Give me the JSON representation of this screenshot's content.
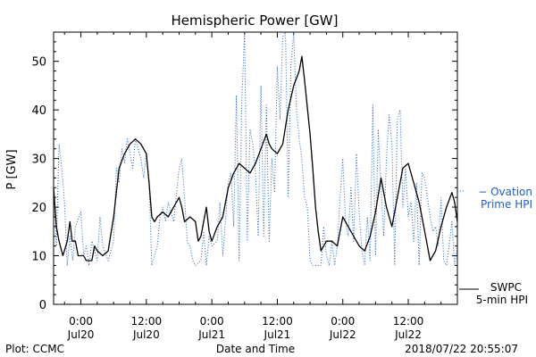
{
  "chart_data": {
    "type": "line",
    "title": "Hemispheric Power [GW]",
    "ylabel": "P [GW]",
    "xlabel": "Date and Time",
    "ylim": [
      0,
      56
    ],
    "xlim_hours": [
      -5,
      69
    ],
    "yticks": [
      0,
      10,
      20,
      30,
      40,
      50
    ],
    "xticks": [
      {
        "hour": 0,
        "time": "0:00",
        "date": "Jul20"
      },
      {
        "hour": 12,
        "time": "12:00",
        "date": "Jul20"
      },
      {
        "hour": 24,
        "time": "0:00",
        "date": "Jul21"
      },
      {
        "hour": 36,
        "time": "12:00",
        "date": "Jul21"
      },
      {
        "hour": 48,
        "time": "0:00",
        "date": "Jul22"
      },
      {
        "hour": 60,
        "time": "12:00",
        "date": "Jul22"
      }
    ],
    "grid": false,
    "legend_placement": "right",
    "series": [
      {
        "name": "SWPC 5-min HPI",
        "legend_lines": [
          "SWPC",
          "5-min HPI"
        ],
        "color": "#000000",
        "style": "solid",
        "points": [
          [
            -5,
            24
          ],
          [
            -4.5,
            16
          ],
          [
            -4,
            13
          ],
          [
            -3.3,
            10
          ],
          [
            -2.5,
            13
          ],
          [
            -2,
            17
          ],
          [
            -1.6,
            13
          ],
          [
            -1,
            13
          ],
          [
            -0.5,
            10
          ],
          [
            0.5,
            10
          ],
          [
            1,
            9
          ],
          [
            2,
            9
          ],
          [
            2.5,
            12
          ],
          [
            3,
            11
          ],
          [
            4,
            10
          ],
          [
            5,
            11
          ],
          [
            6,
            18
          ],
          [
            6.5,
            23
          ],
          [
            7,
            28
          ],
          [
            8,
            31
          ],
          [
            9,
            33
          ],
          [
            10,
            34
          ],
          [
            11,
            33
          ],
          [
            12,
            31
          ],
          [
            12.5,
            25
          ],
          [
            13,
            18
          ],
          [
            13.5,
            17
          ],
          [
            14,
            18
          ],
          [
            15,
            19
          ],
          [
            16,
            18
          ],
          [
            17,
            20
          ],
          [
            18,
            22
          ],
          [
            18.5,
            20
          ],
          [
            19,
            17
          ],
          [
            20,
            18
          ],
          [
            21,
            17
          ],
          [
            21.5,
            13
          ],
          [
            22,
            14
          ],
          [
            23,
            20
          ],
          [
            23.5,
            15
          ],
          [
            24,
            13
          ],
          [
            25,
            16
          ],
          [
            26,
            18
          ],
          [
            27,
            24
          ],
          [
            28,
            27
          ],
          [
            29,
            29
          ],
          [
            30,
            28
          ],
          [
            31,
            27
          ],
          [
            32,
            29
          ],
          [
            33,
            32
          ],
          [
            34,
            35
          ],
          [
            34.5,
            33
          ],
          [
            35,
            32
          ],
          [
            36,
            31
          ],
          [
            37,
            33
          ],
          [
            38,
            40
          ],
          [
            39,
            45
          ],
          [
            40,
            48
          ],
          [
            40.5,
            51
          ],
          [
            41,
            46
          ],
          [
            42,
            35
          ],
          [
            42.5,
            28
          ],
          [
            43,
            20
          ],
          [
            43.5,
            15
          ],
          [
            44,
            11
          ],
          [
            45,
            13
          ],
          [
            46,
            13
          ],
          [
            47,
            12
          ],
          [
            48,
            18
          ],
          [
            49,
            16
          ],
          [
            50,
            14
          ],
          [
            51,
            12
          ],
          [
            52,
            11
          ],
          [
            53,
            14
          ],
          [
            54,
            19
          ],
          [
            55,
            26
          ],
          [
            56,
            20
          ],
          [
            57,
            16
          ],
          [
            57.5,
            19
          ],
          [
            58,
            22
          ],
          [
            59,
            28
          ],
          [
            60,
            29
          ],
          [
            61,
            25
          ],
          [
            62,
            21
          ],
          [
            63,
            15
          ],
          [
            64,
            9
          ],
          [
            65,
            11
          ],
          [
            66,
            16
          ],
          [
            67,
            20
          ],
          [
            68,
            23
          ],
          [
            68.5,
            21
          ],
          [
            69,
            17
          ]
        ]
      },
      {
        "name": "Ovation Prime HPI",
        "legend_lines": [
          "− Ovation",
          "Prime HPI"
        ],
        "color": "#1f5fbf",
        "style": "dotted",
        "points": [
          [
            -5,
            24
          ],
          [
            -4.5,
            12
          ],
          [
            -4,
            33
          ],
          [
            -3.5,
            28
          ],
          [
            -3,
            21
          ],
          [
            -2.5,
            8
          ],
          [
            -2,
            14
          ],
          [
            -1.5,
            9
          ],
          [
            -1,
            16
          ],
          [
            0,
            19
          ],
          [
            0.5,
            10
          ],
          [
            1,
            12
          ],
          [
            1.5,
            8
          ],
          [
            2,
            13
          ],
          [
            3,
            9
          ],
          [
            3.5,
            18
          ],
          [
            4,
            12
          ],
          [
            5,
            9
          ],
          [
            6,
            13
          ],
          [
            6.5,
            28
          ],
          [
            7,
            25
          ],
          [
            7.5,
            32
          ],
          [
            8,
            29
          ],
          [
            8.5,
            34
          ],
          [
            9,
            31
          ],
          [
            9.5,
            28
          ],
          [
            10,
            34
          ],
          [
            11,
            30
          ],
          [
            11.5,
            26
          ],
          [
            12,
            31
          ],
          [
            12.5,
            25
          ],
          [
            13,
            8
          ],
          [
            14,
            12
          ],
          [
            14.5,
            18
          ],
          [
            15,
            20
          ],
          [
            15.5,
            17
          ],
          [
            16,
            21
          ],
          [
            17,
            17
          ],
          [
            18,
            28
          ],
          [
            18.5,
            30
          ],
          [
            19,
            22
          ],
          [
            19.5,
            13
          ],
          [
            20,
            12
          ],
          [
            20.5,
            9
          ],
          [
            21,
            8
          ],
          [
            22,
            9
          ],
          [
            22.5,
            15
          ],
          [
            23,
            8
          ],
          [
            23.5,
            14
          ],
          [
            24,
            12
          ],
          [
            25,
            13
          ],
          [
            25.5,
            21
          ],
          [
            26,
            10
          ],
          [
            26.5,
            17
          ],
          [
            27,
            25
          ],
          [
            27.5,
            27
          ],
          [
            28,
            16
          ],
          [
            28.5,
            43
          ],
          [
            29,
            9
          ],
          [
            29.5,
            42
          ],
          [
            30,
            56
          ],
          [
            30.5,
            13
          ],
          [
            31,
            36
          ],
          [
            31.5,
            33
          ],
          [
            32,
            27
          ],
          [
            32.5,
            14
          ],
          [
            33,
            45
          ],
          [
            33.5,
            14
          ],
          [
            34,
            41
          ],
          [
            34.5,
            13
          ],
          [
            35,
            30
          ],
          [
            35.5,
            23
          ],
          [
            36,
            49
          ],
          [
            36.5,
            38
          ],
          [
            37,
            55
          ],
          [
            37.5,
            56
          ],
          [
            38,
            22
          ],
          [
            38.5,
            49
          ],
          [
            39,
            56
          ],
          [
            39.5,
            40
          ],
          [
            40,
            34
          ],
          [
            40.5,
            30
          ],
          [
            41,
            22
          ],
          [
            41.5,
            20
          ],
          [
            42,
            9
          ],
          [
            42.5,
            8
          ],
          [
            43,
            8
          ],
          [
            44,
            8
          ],
          [
            44.5,
            16
          ],
          [
            45,
            10
          ],
          [
            45.5,
            8
          ],
          [
            46,
            13
          ],
          [
            46.5,
            8
          ],
          [
            47,
            12
          ],
          [
            47.5,
            22
          ],
          [
            48,
            30
          ],
          [
            48.5,
            17
          ],
          [
            49,
            14
          ],
          [
            49.5,
            24
          ],
          [
            50,
            13
          ],
          [
            50.5,
            31
          ],
          [
            51,
            19
          ],
          [
            51.5,
            11
          ],
          [
            52,
            8
          ],
          [
            52.5,
            18
          ],
          [
            53,
            9
          ],
          [
            53.5,
            41
          ],
          [
            54,
            10
          ],
          [
            54.5,
            36
          ],
          [
            55,
            24
          ],
          [
            55.5,
            14
          ],
          [
            56,
            30
          ],
          [
            56.5,
            39
          ],
          [
            57,
            33
          ],
          [
            57.5,
            8
          ],
          [
            58,
            38
          ],
          [
            58.5,
            40
          ],
          [
            59,
            20
          ],
          [
            59.5,
            28
          ],
          [
            60,
            18
          ],
          [
            60.5,
            21
          ],
          [
            61,
            13
          ],
          [
            61.5,
            25
          ],
          [
            62,
            8
          ],
          [
            62.5,
            27
          ],
          [
            63,
            26
          ],
          [
            63.5,
            22
          ],
          [
            64,
            18
          ],
          [
            64.5,
            15
          ],
          [
            65,
            16
          ],
          [
            65.5,
            12
          ],
          [
            66,
            22
          ],
          [
            66.5,
            9
          ],
          [
            67,
            8
          ],
          [
            67.5,
            12
          ],
          [
            68,
            17
          ],
          [
            68.5,
            8
          ],
          [
            69,
            12
          ]
        ]
      }
    ]
  },
  "footer": {
    "left": "Plot: CCMC",
    "right": "2018/07/22 20:55:07"
  }
}
